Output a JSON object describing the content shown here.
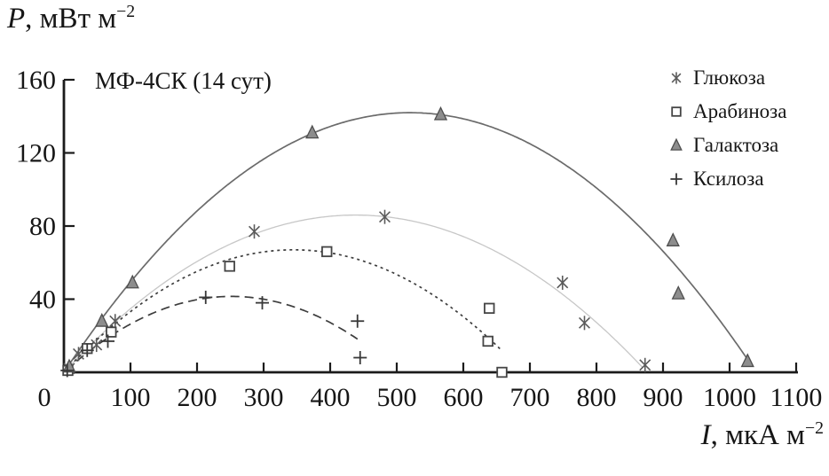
{
  "chart_data": {
    "type": "scatter",
    "annotation": "МФ-4СК (14 сут)",
    "x_axis": {
      "label_symbol": "I",
      "label_rest": ", мкА м",
      "label_exponent": "−2",
      "range": [
        0,
        1100
      ],
      "ticks": [
        0,
        100,
        200,
        300,
        400,
        500,
        600,
        700,
        800,
        900,
        1000,
        1100
      ]
    },
    "y_axis": {
      "label_symbol": "P",
      "label_rest": ", мВт м",
      "label_exponent": "−2",
      "range": [
        0,
        160
      ],
      "ticks": [
        40,
        80,
        120,
        160
      ]
    },
    "legend_position": "top-right",
    "grid": false,
    "series": [
      {
        "name": "Глюкоза",
        "marker": "star6",
        "marker_color": "#5a5a5a",
        "line_style": "solid",
        "line_color": "#c7c7c7",
        "points": [
          [
            8,
            2
          ],
          [
            22,
            10
          ],
          [
            49,
            15
          ],
          [
            77,
            28
          ],
          [
            286,
            77
          ],
          [
            482,
            85
          ],
          [
            749,
            49
          ],
          [
            782,
            27
          ],
          [
            873,
            4
          ]
        ],
        "fit_parabola": {
          "peak_x": 438,
          "peak_y": 86,
          "draw_from": 3,
          "draw_to": 871
        }
      },
      {
        "name": "Арабиноза",
        "marker": "open-square",
        "marker_color": "#454545",
        "line_style": "dotted",
        "line_color": "#3d3d3d",
        "points": [
          [
            6,
            1
          ],
          [
            35,
            13
          ],
          [
            71,
            22
          ],
          [
            249,
            58
          ],
          [
            395,
            66
          ],
          [
            639,
            35
          ],
          [
            637,
            17
          ],
          [
            658,
            0
          ]
        ],
        "fit_parabola": {
          "peak_x": 345,
          "peak_y": 67,
          "draw_from": 3,
          "draw_to": 658
        }
      },
      {
        "name": "Галактоза",
        "marker": "triangle-up",
        "marker_color": "#8d8d8d",
        "line_style": "solid",
        "line_color": "#6b6b6b",
        "points": [
          [
            8,
            3
          ],
          [
            57,
            28
          ],
          [
            103,
            49
          ],
          [
            373,
            131
          ],
          [
            566,
            141
          ],
          [
            915,
            72
          ],
          [
            923,
            43
          ],
          [
            1027,
            6
          ]
        ],
        "fit_parabola": {
          "peak_x": 520,
          "peak_y": 142,
          "draw_from": 3,
          "draw_to": 1030
        }
      },
      {
        "name": "Ксилоза",
        "marker": "plus",
        "marker_color": "#383838",
        "line_style": "dashed",
        "line_color": "#3d3d3d",
        "points": [
          [
            5,
            1
          ],
          [
            35,
            12
          ],
          [
            66,
            17
          ],
          [
            213,
            41
          ],
          [
            298,
            38
          ],
          [
            441,
            28
          ],
          [
            445,
            8
          ]
        ],
        "fit_parabola": {
          "peak_x": 252,
          "peak_y": 41.5,
          "draw_from": 3,
          "draw_to": 442
        }
      }
    ]
  }
}
